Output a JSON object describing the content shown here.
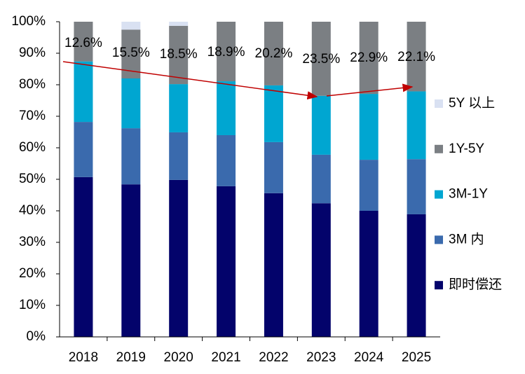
{
  "chart_data": {
    "type": "stacked_bar",
    "categories": [
      "2018",
      "2019",
      "2020",
      "2021",
      "2022",
      "2023",
      "2024",
      "2025"
    ],
    "series": [
      {
        "name": "即时偿还",
        "color": "#03036b",
        "values": [
          50.7,
          48.4,
          49.8,
          47.8,
          45.6,
          42.4,
          40.0,
          38.9
        ]
      },
      {
        "name": "3M 内",
        "color": "#3a6aad",
        "values": [
          17.5,
          17.8,
          15.1,
          16.2,
          16.2,
          15.4,
          16.2,
          17.5
        ]
      },
      {
        "name": "3M-1Y",
        "color": "#00a6d1",
        "values": [
          19.2,
          15.8,
          15.3,
          17.1,
          18.0,
          18.7,
          20.9,
          21.5
        ]
      },
      {
        "name": "1Y-5Y",
        "color": "#7b7f83",
        "values": [
          12.6,
          15.5,
          18.5,
          18.9,
          20.2,
          23.5,
          22.9,
          22.1
        ],
        "value_labels": [
          "12.6%",
          "15.5%",
          "18.5%",
          "18.9%",
          "20.2%",
          "23.5%",
          "22.9%",
          "22.1%"
        ]
      },
      {
        "name": "5Y 以上",
        "color": "#d9e1f2",
        "values": [
          0,
          2.5,
          1.3,
          0,
          0,
          0,
          0,
          0
        ]
      }
    ],
    "ylim": [
      0,
      100
    ],
    "yticks": [
      {
        "value": 0,
        "label": "0%"
      },
      {
        "value": 10,
        "label": "10%"
      },
      {
        "value": 20,
        "label": "20%"
      },
      {
        "value": 30,
        "label": "30%"
      },
      {
        "value": 40,
        "label": "40%"
      },
      {
        "value": 50,
        "label": "50%"
      },
      {
        "value": 60,
        "label": "60%"
      },
      {
        "value": 70,
        "label": "70%"
      },
      {
        "value": 80,
        "label": "80%"
      },
      {
        "value": 90,
        "label": "90%"
      },
      {
        "value": 100,
        "label": "100%"
      }
    ],
    "legend": "right"
  }
}
